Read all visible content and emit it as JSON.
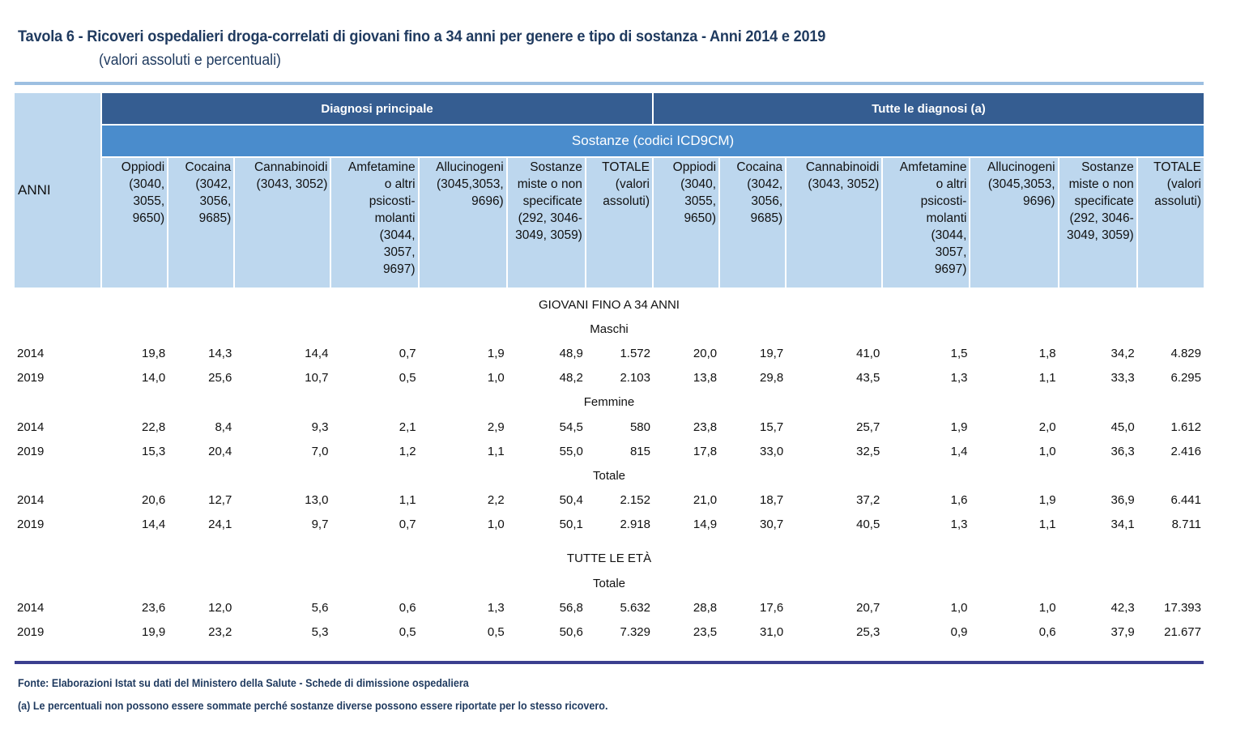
{
  "title": "Tavola 6 - Ricoveri ospedalieri droga-correlati di giovani fino a 34 anni per genere e tipo di sostanza - Anni 2014 e 2019",
  "subtitle": "(valori assoluti e percentuali)",
  "colors": {
    "title": "#1f3a5f",
    "group_header": "#355d91",
    "sub_header": "#4a8ccc",
    "column_header": "#bdd7ee",
    "top_rule": "#9dbfe1",
    "bottom_rule": "#3b3f8f"
  },
  "header": {
    "anni": "ANNI",
    "groups": [
      "Diagnosi principale",
      "Tutte le diagnosi (a)"
    ],
    "sub": "Sostanze (codici ICD9CM)",
    "columns": [
      "Oppiodi\n(3040,\n3055,\n9650)",
      "Cocaina\n(3042,\n3056,\n9685)",
      "Cannabinoidi\n(3043, 3052)",
      "Amfetamine\no altri\npsicosti-\nmolanti\n(3044,\n3057,\n9697)",
      "Allucinogeni\n(3045,3053,\n9696)",
      "Sostanze\nmiste o non\nspecificate\n(292, 3046-\n3049, 3059)",
      "TOTALE\n(valori\nassoluti)"
    ]
  },
  "sections": [
    {
      "label": "GIOVANI FINO A 34 ANNI",
      "groups": [
        {
          "label": "Maschi",
          "rows": [
            {
              "year": "2014",
              "values": [
                "19,8",
                "14,3",
                "14,4",
                "0,7",
                "1,9",
                "48,9",
                "1.572",
                "20,0",
                "19,7",
                "41,0",
                "1,5",
                "1,8",
                "34,2",
                "4.829"
              ]
            },
            {
              "year": "2019",
              "values": [
                "14,0",
                "25,6",
                "10,7",
                "0,5",
                "1,0",
                "48,2",
                "2.103",
                "13,8",
                "29,8",
                "43,5",
                "1,3",
                "1,1",
                "33,3",
                "6.295"
              ]
            }
          ]
        },
        {
          "label": "Femmine",
          "rows": [
            {
              "year": "2014",
              "values": [
                "22,8",
                "8,4",
                "9,3",
                "2,1",
                "2,9",
                "54,5",
                "580",
                "23,8",
                "15,7",
                "25,7",
                "1,9",
                "2,0",
                "45,0",
                "1.612"
              ]
            },
            {
              "year": "2019",
              "values": [
                "15,3",
                "20,4",
                "7,0",
                "1,2",
                "1,1",
                "55,0",
                "815",
                "17,8",
                "33,0",
                "32,5",
                "1,4",
                "1,0",
                "36,3",
                "2.416"
              ]
            }
          ]
        },
        {
          "label": "Totale",
          "rows": [
            {
              "year": "2014",
              "values": [
                "20,6",
                "12,7",
                "13,0",
                "1,1",
                "2,2",
                "50,4",
                "2.152",
                "21,0",
                "18,7",
                "37,2",
                "1,6",
                "1,9",
                "36,9",
                "6.441"
              ]
            },
            {
              "year": "2019",
              "values": [
                "14,4",
                "24,1",
                "9,7",
                "0,7",
                "1,0",
                "50,1",
                "2.918",
                "14,9",
                "30,7",
                "40,5",
                "1,3",
                "1,1",
                "34,1",
                "8.711"
              ]
            }
          ]
        }
      ]
    },
    {
      "label": "TUTTE LE ETÀ",
      "groups": [
        {
          "label": "Totale",
          "rows": [
            {
              "year": "2014",
              "values": [
                "23,6",
                "12,0",
                "5,6",
                "0,6",
                "1,3",
                "56,8",
                "5.632",
                "28,8",
                "17,6",
                "20,7",
                "1,0",
                "1,0",
                "42,3",
                "17.393"
              ]
            },
            {
              "year": "2019",
              "values": [
                "19,9",
                "23,2",
                "5,3",
                "0,5",
                "0,5",
                "50,6",
                "7.329",
                "23,5",
                "31,0",
                "25,3",
                "0,9",
                "0,6",
                "37,9",
                "21.677"
              ]
            }
          ]
        }
      ]
    }
  ],
  "notes": {
    "source": "Fonte: Elaborazioni Istat su dati del Ministero della Salute - Schede di dimissione ospedaliera",
    "footnote": "(a) Le percentuali non possono essere sommate perché sostanze diverse possono essere riportate per lo stesso ricovero."
  }
}
